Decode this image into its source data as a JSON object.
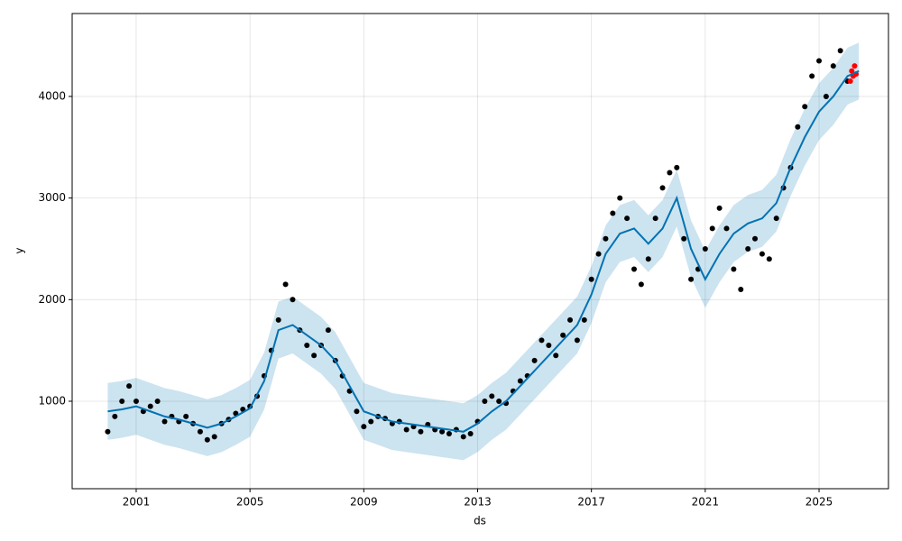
{
  "chart_data": {
    "type": "forecast",
    "x_label": "ds",
    "y_label": "y",
    "xlim": [
      1998.75,
      2027.44
    ],
    "ylim": [
      139,
      4816
    ],
    "xticks": [
      2001,
      2005,
      2009,
      2013,
      2017,
      2021,
      2025
    ],
    "yticks": [
      1000,
      2000,
      3000,
      4000
    ],
    "grid": true,
    "series": [
      {
        "kind": "scatter",
        "color": "#000000",
        "x": [
          2000.0,
          2000.25,
          2000.5,
          2000.75,
          2001.0,
          2001.25,
          2001.5,
          2001.75,
          2002.0,
          2002.25,
          2002.5,
          2002.75,
          2003.0,
          2003.25,
          2003.5,
          2003.75,
          2004.0,
          2004.25,
          2004.5,
          2004.75,
          2005.0,
          2005.25,
          2005.5,
          2005.75,
          2006.0,
          2006.25,
          2006.5,
          2006.75,
          2007.0,
          2007.25,
          2007.5,
          2007.75,
          2008.0,
          2008.25,
          2008.5,
          2008.75,
          2009.0,
          2009.25,
          2009.5,
          2009.75,
          2010.0,
          2010.25,
          2010.5,
          2010.75,
          2011.0,
          2011.25,
          2011.5,
          2011.75,
          2012.0,
          2012.25,
          2012.5,
          2012.75,
          2013.0,
          2013.25,
          2013.5,
          2013.75,
          2014.0,
          2014.25,
          2014.5,
          2014.75,
          2015.0,
          2015.25,
          2015.5,
          2015.75,
          2016.0,
          2016.25,
          2016.5,
          2016.75,
          2017.0,
          2017.25,
          2017.5,
          2017.75,
          2018.0,
          2018.25,
          2018.5,
          2018.75,
          2019.0,
          2019.25,
          2019.5,
          2019.75,
          2020.0,
          2020.25,
          2020.5,
          2020.75,
          2021.0,
          2021.25,
          2021.5,
          2021.75,
          2022.0,
          2022.25,
          2022.5,
          2022.75,
          2023.0,
          2023.25,
          2023.5,
          2023.75,
          2024.0,
          2024.25,
          2024.5,
          2024.75,
          2025.0,
          2025.25,
          2025.5,
          2025.75,
          2026.0
        ],
        "values": [
          700,
          850,
          1000,
          1150,
          1000,
          900,
          950,
          1000,
          800,
          850,
          800,
          850,
          780,
          700,
          620,
          650,
          780,
          820,
          880,
          920,
          950,
          1050,
          1250,
          1500,
          1800,
          2150,
          2000,
          1700,
          1550,
          1450,
          1550,
          1700,
          1400,
          1250,
          1100,
          900,
          750,
          800,
          850,
          830,
          780,
          800,
          720,
          750,
          700,
          770,
          720,
          700,
          680,
          720,
          650,
          680,
          800,
          1000,
          1050,
          1000,
          980,
          1100,
          1200,
          1250,
          1400,
          1600,
          1550,
          1450,
          1650,
          1800,
          1600,
          1800,
          2200,
          2450,
          2600,
          2850,
          3000,
          2800,
          2300,
          2150,
          2400,
          2800,
          3100,
          3250,
          3300,
          2600,
          2200,
          2300,
          2500,
          2700,
          2900,
          2700,
          2300,
          2100,
          2500,
          2600,
          2450,
          2400,
          2800,
          3100,
          3300,
          3700,
          3900,
          4200,
          4350,
          4000,
          4300,
          4450,
          4150
        ]
      },
      {
        "kind": "forecast",
        "color": "#0072b2",
        "band_color": "#0072b2",
        "x": [
          2000.0,
          2000.5,
          2001.0,
          2001.5,
          2002.0,
          2002.5,
          2003.0,
          2003.5,
          2004.0,
          2004.5,
          2005.0,
          2005.5,
          2006.0,
          2006.5,
          2007.0,
          2007.5,
          2008.0,
          2008.5,
          2009.0,
          2009.5,
          2010.0,
          2010.5,
          2011.0,
          2011.5,
          2012.0,
          2012.5,
          2013.0,
          2013.5,
          2014.0,
          2014.5,
          2015.0,
          2015.5,
          2016.0,
          2016.5,
          2017.0,
          2017.5,
          2018.0,
          2018.5,
          2019.0,
          2019.5,
          2020.0,
          2020.5,
          2021.0,
          2021.5,
          2022.0,
          2022.5,
          2023.0,
          2023.5,
          2024.0,
          2024.5,
          2025.0,
          2025.5,
          2026.0,
          2026.4
        ],
        "values": [
          900,
          920,
          950,
          900,
          850,
          820,
          780,
          740,
          780,
          850,
          930,
          1200,
          1700,
          1750,
          1650,
          1550,
          1400,
          1150,
          900,
          850,
          800,
          780,
          760,
          740,
          720,
          700,
          780,
          900,
          1000,
          1150,
          1300,
          1450,
          1600,
          1750,
          2050,
          2450,
          2650,
          2700,
          2550,
          2700,
          3000,
          2500,
          2200,
          2450,
          2650,
          2750,
          2800,
          2950,
          3300,
          3600,
          3850,
          4000,
          4200,
          4250
        ],
        "lower": [
          620,
          640,
          670,
          620,
          570,
          540,
          500,
          460,
          500,
          570,
          650,
          920,
          1420,
          1470,
          1370,
          1270,
          1120,
          870,
          620,
          570,
          520,
          500,
          480,
          460,
          440,
          420,
          500,
          620,
          720,
          870,
          1020,
          1170,
          1320,
          1470,
          1770,
          2170,
          2370,
          2420,
          2270,
          2420,
          2720,
          2220,
          1920,
          2170,
          2370,
          2470,
          2520,
          2670,
          3020,
          3320,
          3570,
          3720,
          3920,
          3970
        ],
        "upper": [
          1180,
          1200,
          1230,
          1180,
          1130,
          1100,
          1060,
          1020,
          1060,
          1130,
          1210,
          1480,
          1980,
          2030,
          1930,
          1830,
          1680,
          1430,
          1180,
          1130,
          1080,
          1060,
          1040,
          1020,
          1000,
          980,
          1060,
          1180,
          1280,
          1430,
          1580,
          1730,
          1880,
          2030,
          2330,
          2730,
          2930,
          2980,
          2830,
          2980,
          3280,
          2780,
          2480,
          2730,
          2930,
          3030,
          3080,
          3230,
          3580,
          3880,
          4130,
          4280,
          4480,
          4530
        ]
      },
      {
        "kind": "scatter",
        "color": "#ff0000",
        "x": [
          2026.1,
          2026.15,
          2026.2,
          2026.25,
          2026.3
        ],
        "values": [
          4150,
          4250,
          4200,
          4300,
          4220
        ]
      }
    ]
  }
}
